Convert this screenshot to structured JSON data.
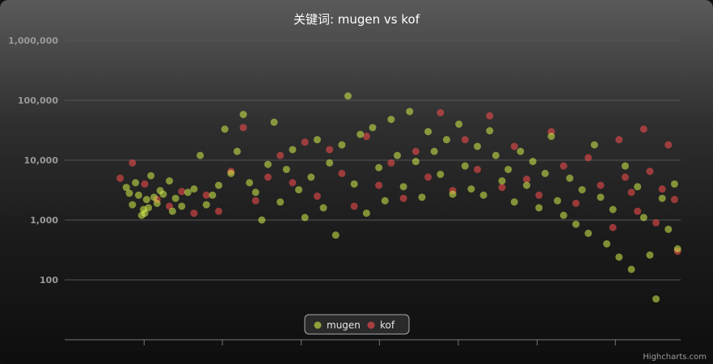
{
  "colors": {
    "mugen": "#d4f04a",
    "kof": "#ff4f4f",
    "grid": "#555555",
    "title": "#ffffff"
  },
  "chart_data": {
    "type": "scatter",
    "title": "关键词: mugen vs kof",
    "xlabel": "",
    "ylabel": "",
    "yscale": "log",
    "ylim": [
      10,
      1000000
    ],
    "xlim": [
      0,
      100
    ],
    "y_ticks": [
      "1,000,000",
      "100,000",
      "10,000",
      "1,000",
      "100"
    ],
    "y_tick_values": [
      1000000,
      100000,
      10000,
      1000,
      100
    ],
    "x_ticks": [
      12.9,
      25.6,
      38.4,
      51.1,
      63.9,
      76.7,
      89.4
    ],
    "grid": true,
    "legend_position": "bottom-center",
    "series": [
      {
        "name": "mugen",
        "color_key": "mugen",
        "points": [
          [
            10,
            3500
          ],
          [
            10.5,
            2800
          ],
          [
            11,
            1800
          ],
          [
            11.5,
            4200
          ],
          [
            12,
            2600
          ],
          [
            12.5,
            1200
          ],
          [
            12.8,
            1500
          ],
          [
            13,
            1300
          ],
          [
            13.3,
            2200
          ],
          [
            13.6,
            1600
          ],
          [
            14,
            5500
          ],
          [
            14.5,
            2400
          ],
          [
            15,
            1900
          ],
          [
            15.5,
            3100
          ],
          [
            16,
            2700
          ],
          [
            17,
            4500
          ],
          [
            17.5,
            1400
          ],
          [
            18,
            2300
          ],
          [
            19,
            1700
          ],
          [
            20,
            2900
          ],
          [
            21,
            3300
          ],
          [
            22,
            12000
          ],
          [
            23,
            1800
          ],
          [
            24,
            2600
          ],
          [
            25,
            3800
          ],
          [
            26,
            33000
          ],
          [
            27,
            6000
          ],
          [
            28,
            14000
          ],
          [
            29,
            58000
          ],
          [
            30,
            4200
          ],
          [
            31,
            2900
          ],
          [
            32,
            1000
          ],
          [
            33,
            8500
          ],
          [
            34,
            43000
          ],
          [
            35,
            2000
          ],
          [
            36,
            7000
          ],
          [
            37,
            15000
          ],
          [
            38,
            3200
          ],
          [
            39,
            1100
          ],
          [
            40,
            5200
          ],
          [
            41,
            22000
          ],
          [
            42,
            1600
          ],
          [
            43,
            9000
          ],
          [
            44,
            560
          ],
          [
            45,
            18000
          ],
          [
            46,
            118000
          ],
          [
            47,
            4000
          ],
          [
            48,
            27000
          ],
          [
            49,
            1300
          ],
          [
            50,
            35000
          ],
          [
            51,
            7500
          ],
          [
            52,
            2100
          ],
          [
            53,
            48000
          ],
          [
            54,
            12000
          ],
          [
            55,
            3600
          ],
          [
            56,
            65000
          ],
          [
            57,
            9500
          ],
          [
            58,
            2400
          ],
          [
            59,
            30000
          ],
          [
            60,
            14000
          ],
          [
            61,
            5800
          ],
          [
            62,
            22000
          ],
          [
            63,
            2700
          ],
          [
            64,
            40000
          ],
          [
            65,
            8000
          ],
          [
            66,
            3300
          ],
          [
            67,
            17000
          ],
          [
            68,
            2600
          ],
          [
            69,
            31000
          ],
          [
            70,
            12000
          ],
          [
            71,
            4500
          ],
          [
            72,
            7000
          ],
          [
            73,
            2000
          ],
          [
            74,
            14000
          ],
          [
            75,
            3800
          ],
          [
            76,
            9500
          ],
          [
            77,
            1600
          ],
          [
            78,
            6000
          ],
          [
            79,
            25000
          ],
          [
            80,
            2100
          ],
          [
            81,
            1200
          ],
          [
            82,
            5000
          ],
          [
            83,
            850
          ],
          [
            84,
            3200
          ],
          [
            85,
            600
          ],
          [
            86,
            18000
          ],
          [
            87,
            2400
          ],
          [
            88,
            400
          ],
          [
            89,
            1500
          ],
          [
            90,
            240
          ],
          [
            91,
            8000
          ],
          [
            92,
            150
          ],
          [
            93,
            3600
          ],
          [
            94,
            1100
          ],
          [
            95,
            260
          ],
          [
            96,
            48
          ],
          [
            97,
            2300
          ],
          [
            98,
            700
          ],
          [
            99,
            4000
          ],
          [
            99.5,
            330
          ]
        ]
      },
      {
        "name": "kof",
        "color_key": "kof",
        "points": [
          [
            9,
            5000
          ],
          [
            11,
            9000
          ],
          [
            13,
            4000
          ],
          [
            15,
            2200
          ],
          [
            17,
            1700
          ],
          [
            19,
            3000
          ],
          [
            21,
            1300
          ],
          [
            23,
            2600
          ],
          [
            25,
            1400
          ],
          [
            27,
            6500
          ],
          [
            29,
            35000
          ],
          [
            31,
            2100
          ],
          [
            33,
            5200
          ],
          [
            35,
            12000
          ],
          [
            37,
            4200
          ],
          [
            39,
            20000
          ],
          [
            41,
            2500
          ],
          [
            43,
            15000
          ],
          [
            45,
            6000
          ],
          [
            47,
            1700
          ],
          [
            49,
            25000
          ],
          [
            51,
            3800
          ],
          [
            53,
            9000
          ],
          [
            55,
            2300
          ],
          [
            57,
            14000
          ],
          [
            59,
            5200
          ],
          [
            61,
            62000
          ],
          [
            63,
            3100
          ],
          [
            65,
            22000
          ],
          [
            67,
            7000
          ],
          [
            69,
            55000
          ],
          [
            71,
            3500
          ],
          [
            73,
            17000
          ],
          [
            75,
            4800
          ],
          [
            77,
            2600
          ],
          [
            79,
            30000
          ],
          [
            81,
            8000
          ],
          [
            83,
            1900
          ],
          [
            85,
            11000
          ],
          [
            87,
            3800
          ],
          [
            89,
            750
          ],
          [
            90,
            22000
          ],
          [
            91,
            5200
          ],
          [
            92,
            2900
          ],
          [
            93,
            1400
          ],
          [
            94,
            33000
          ],
          [
            95,
            6500
          ],
          [
            96,
            900
          ],
          [
            97,
            3300
          ],
          [
            98,
            18000
          ],
          [
            99,
            2200
          ],
          [
            99.5,
            300
          ]
        ]
      }
    ]
  },
  "legend": {
    "items": [
      {
        "label": "mugen"
      },
      {
        "label": "kof"
      }
    ]
  },
  "credit": "Highcharts.com"
}
